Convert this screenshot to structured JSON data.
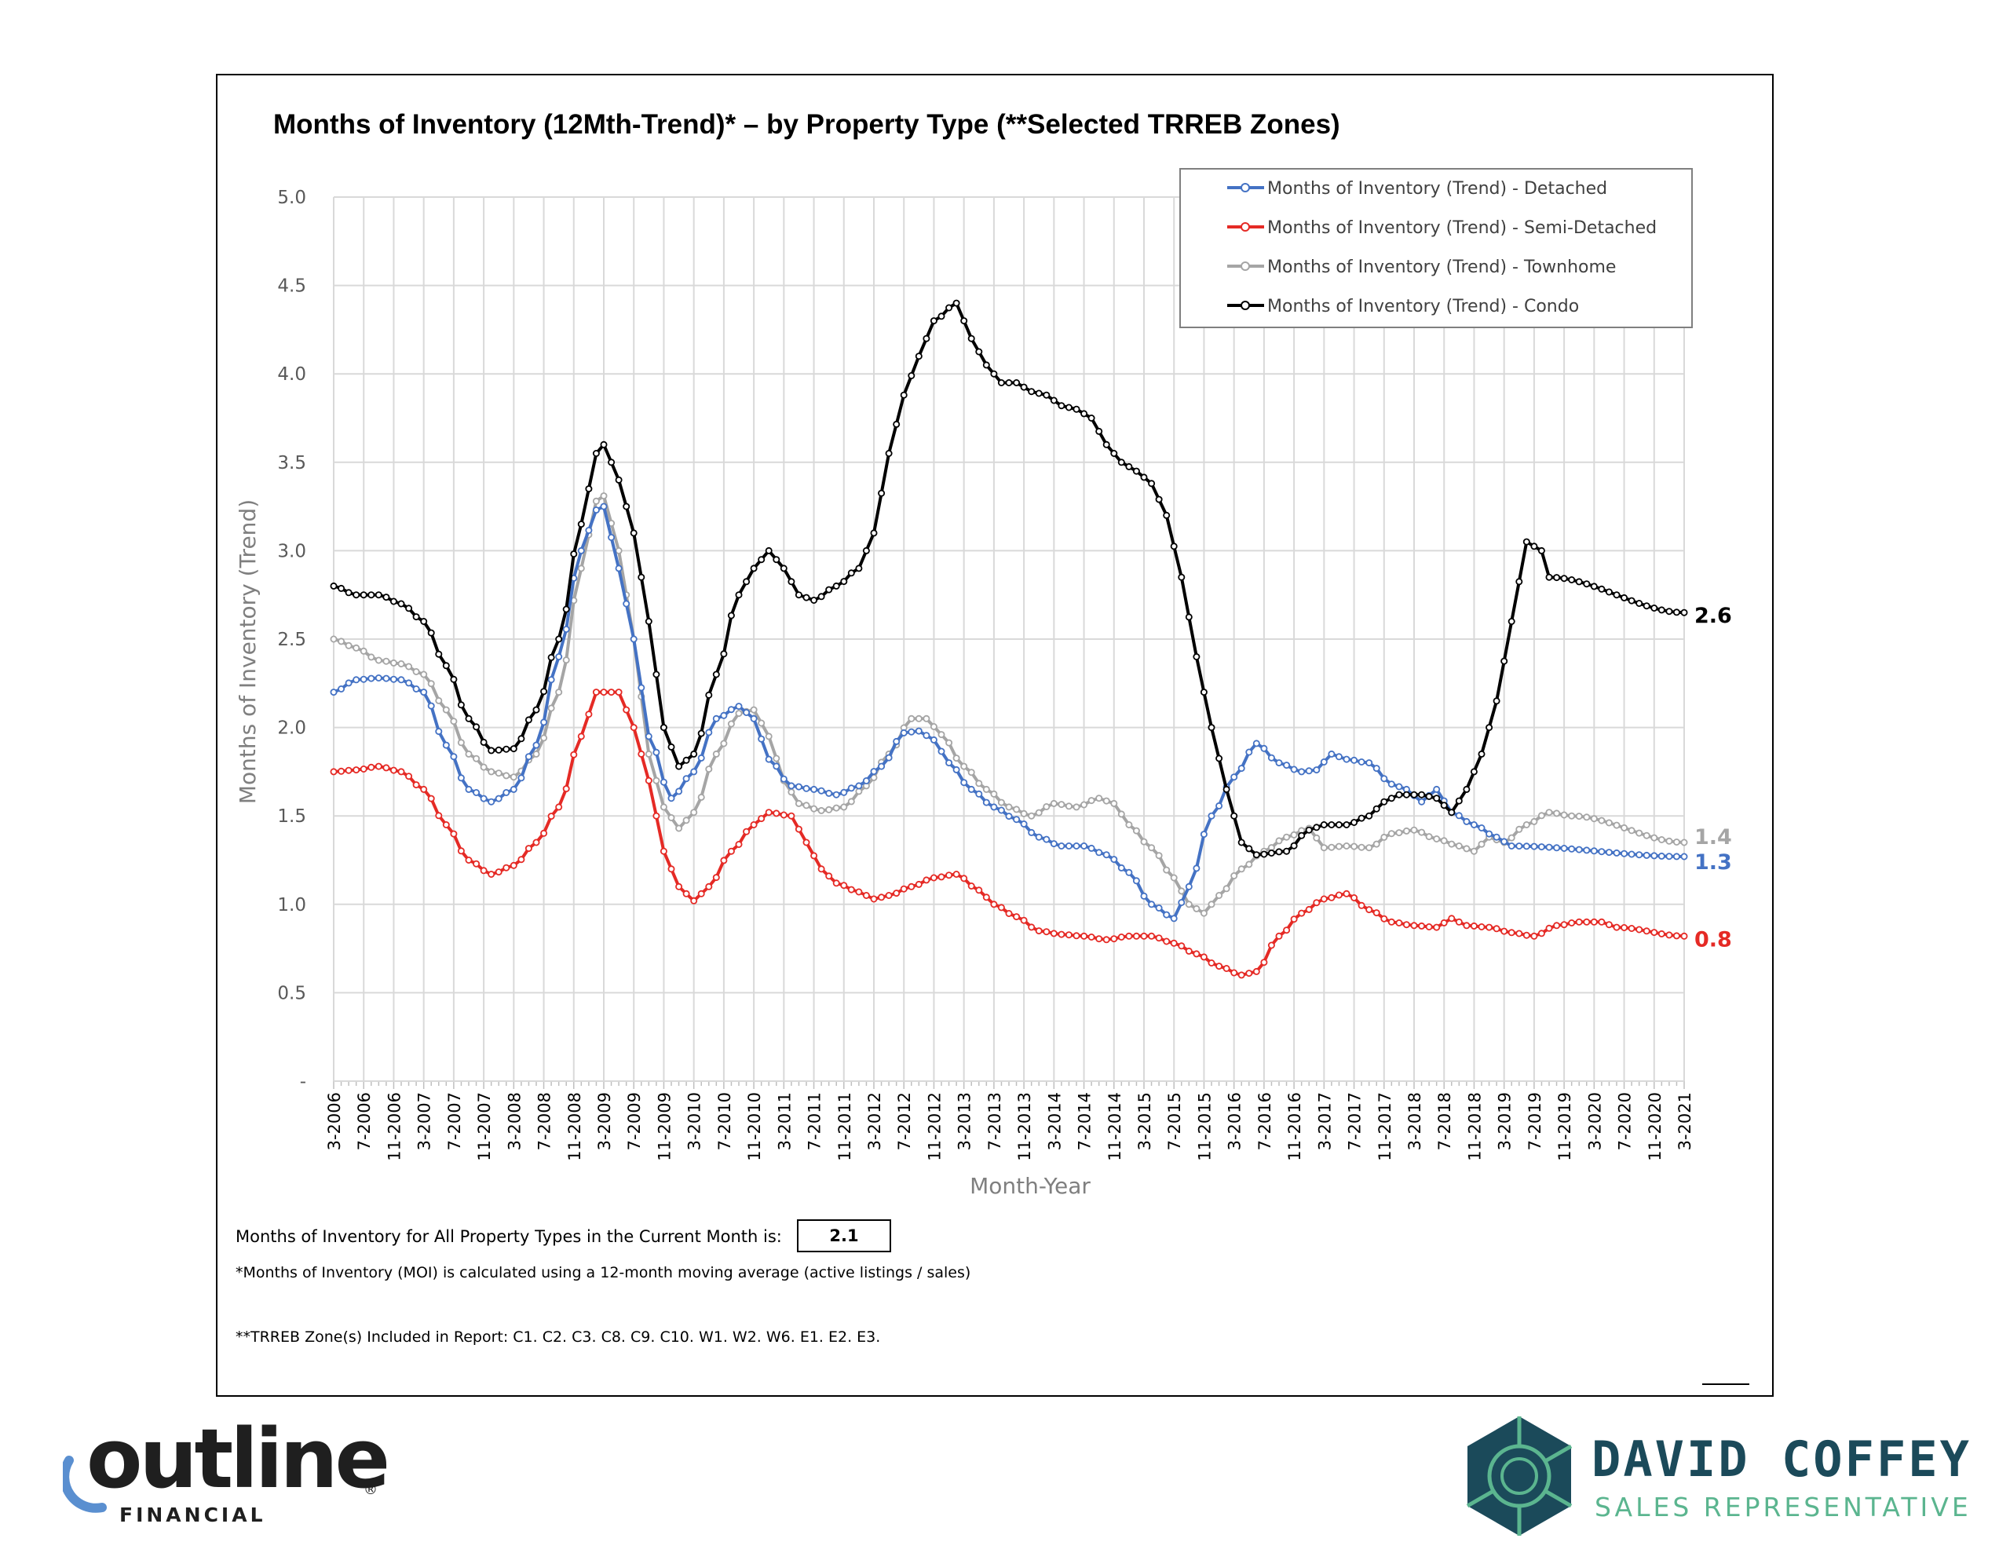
{
  "chart_data": {
    "type": "line",
    "title": "Months of Inventory (12Mth-Trend)* – by Property Type (**Selected TRREB Zones)",
    "xlabel": "Month-Year",
    "ylabel": "Months of Inventory (Trend)",
    "ylim": [
      0,
      5
    ],
    "yticks": [
      "-",
      "0.5",
      "1.0",
      "1.5",
      "2.0",
      "2.5",
      "3.0",
      "3.5",
      "4.0",
      "4.5",
      "5.0"
    ],
    "x_start": "3-2006",
    "x_end": "3-2021",
    "xticks": [
      "3-2006",
      "7-2006",
      "11-2006",
      "3-2007",
      "7-2007",
      "11-2007",
      "3-2008",
      "7-2008",
      "11-2008",
      "3-2009",
      "7-2009",
      "11-2009",
      "3-2010",
      "7-2010",
      "11-2010",
      "3-2011",
      "7-2011",
      "11-2011",
      "3-2012",
      "7-2012",
      "11-2012",
      "3-2013",
      "7-2013",
      "11-2013",
      "3-2014",
      "7-2014",
      "11-2014",
      "3-2015",
      "7-2015",
      "11-2015",
      "3-2016",
      "7-2016",
      "11-2016",
      "3-2017",
      "7-2017",
      "11-2017",
      "3-2018",
      "7-2018",
      "11-2018",
      "3-2019",
      "7-2019",
      "11-2019",
      "3-2020",
      "7-2020",
      "11-2020",
      "3-2021"
    ],
    "grid": true,
    "legend_position": "top-right",
    "series": [
      {
        "name": "Months of Inventory (Trend) - Detached",
        "color": "#4472c4",
        "end_label": "1.3",
        "keypoints": [
          [
            0,
            2.2
          ],
          [
            3,
            2.27
          ],
          [
            6,
            2.28
          ],
          [
            9,
            2.27
          ],
          [
            12,
            2.2
          ],
          [
            15,
            1.9
          ],
          [
            18,
            1.65
          ],
          [
            21,
            1.58
          ],
          [
            24,
            1.65
          ],
          [
            27,
            1.9
          ],
          [
            30,
            2.4
          ],
          [
            33,
            3.0
          ],
          [
            35,
            3.23
          ],
          [
            36,
            3.25
          ],
          [
            38,
            2.9
          ],
          [
            40,
            2.5
          ],
          [
            42,
            1.95
          ],
          [
            45,
            1.6
          ],
          [
            48,
            1.75
          ],
          [
            51,
            2.05
          ],
          [
            54,
            2.12
          ],
          [
            56,
            2.05
          ],
          [
            58,
            1.82
          ],
          [
            61,
            1.67
          ],
          [
            64,
            1.65
          ],
          [
            67,
            1.62
          ],
          [
            70,
            1.67
          ],
          [
            73,
            1.78
          ],
          [
            76,
            1.97
          ],
          [
            78,
            1.98
          ],
          [
            80,
            1.93
          ],
          [
            82,
            1.8
          ],
          [
            85,
            1.65
          ],
          [
            88,
            1.55
          ],
          [
            91,
            1.48
          ],
          [
            94,
            1.38
          ],
          [
            97,
            1.33
          ],
          [
            100,
            1.33
          ],
          [
            103,
            1.28
          ],
          [
            106,
            1.18
          ],
          [
            109,
            1.0
          ],
          [
            112,
            0.92
          ],
          [
            114,
            1.1
          ],
          [
            117,
            1.5
          ],
          [
            120,
            1.72
          ],
          [
            123,
            1.91
          ],
          [
            126,
            1.8
          ],
          [
            129,
            1.75
          ],
          [
            131,
            1.76
          ],
          [
            133,
            1.85
          ],
          [
            135,
            1.82
          ],
          [
            138,
            1.8
          ],
          [
            141,
            1.68
          ],
          [
            143,
            1.65
          ],
          [
            145,
            1.58
          ],
          [
            147,
            1.65
          ],
          [
            149,
            1.52
          ],
          [
            152,
            1.45
          ],
          [
            155,
            1.38
          ],
          [
            157,
            1.33
          ],
          [
            180,
            1.27
          ]
        ]
      },
      {
        "name": "Months of Inventory (Trend) - Semi-Detached",
        "color": "#e52a25",
        "end_label": "0.8",
        "keypoints": [
          [
            0,
            1.75
          ],
          [
            3,
            1.76
          ],
          [
            6,
            1.78
          ],
          [
            9,
            1.75
          ],
          [
            12,
            1.65
          ],
          [
            15,
            1.45
          ],
          [
            18,
            1.25
          ],
          [
            21,
            1.17
          ],
          [
            24,
            1.22
          ],
          [
            27,
            1.35
          ],
          [
            30,
            1.55
          ],
          [
            33,
            1.95
          ],
          [
            35,
            2.2
          ],
          [
            38,
            2.2
          ],
          [
            40,
            2.0
          ],
          [
            42,
            1.7
          ],
          [
            44,
            1.3
          ],
          [
            46,
            1.1
          ],
          [
            48,
            1.02
          ],
          [
            50,
            1.1
          ],
          [
            53,
            1.3
          ],
          [
            56,
            1.45
          ],
          [
            58,
            1.52
          ],
          [
            61,
            1.5
          ],
          [
            63,
            1.35
          ],
          [
            65,
            1.2
          ],
          [
            67,
            1.12
          ],
          [
            70,
            1.07
          ],
          [
            72,
            1.03
          ],
          [
            74,
            1.05
          ],
          [
            77,
            1.1
          ],
          [
            80,
            1.15
          ],
          [
            83,
            1.17
          ],
          [
            86,
            1.08
          ],
          [
            88,
            1.0
          ],
          [
            91,
            0.93
          ],
          [
            94,
            0.85
          ],
          [
            97,
            0.83
          ],
          [
            100,
            0.82
          ],
          [
            103,
            0.8
          ],
          [
            106,
            0.82
          ],
          [
            109,
            0.82
          ],
          [
            112,
            0.78
          ],
          [
            115,
            0.72
          ],
          [
            118,
            0.65
          ],
          [
            121,
            0.6
          ],
          [
            123,
            0.62
          ],
          [
            126,
            0.82
          ],
          [
            129,
            0.95
          ],
          [
            132,
            1.03
          ],
          [
            135,
            1.06
          ],
          [
            138,
            0.97
          ],
          [
            141,
            0.9
          ],
          [
            144,
            0.88
          ],
          [
            147,
            0.87
          ],
          [
            149,
            0.92
          ],
          [
            151,
            0.88
          ],
          [
            154,
            0.87
          ],
          [
            157,
            0.84
          ],
          [
            160,
            0.82
          ],
          [
            163,
            0.88
          ],
          [
            166,
            0.9
          ],
          [
            169,
            0.9
          ],
          [
            171,
            0.87
          ],
          [
            180,
            0.82
          ]
        ]
      },
      {
        "name": "Months of Inventory (Trend) - Townhome",
        "color": "#a5a5a5",
        "end_label": "1.4",
        "keypoints": [
          [
            0,
            2.5
          ],
          [
            3,
            2.45
          ],
          [
            6,
            2.38
          ],
          [
            9,
            2.36
          ],
          [
            12,
            2.3
          ],
          [
            15,
            2.1
          ],
          [
            18,
            1.85
          ],
          [
            21,
            1.75
          ],
          [
            24,
            1.72
          ],
          [
            27,
            1.85
          ],
          [
            30,
            2.2
          ],
          [
            33,
            2.9
          ],
          [
            35,
            3.28
          ],
          [
            36,
            3.31
          ],
          [
            38,
            3.0
          ],
          [
            40,
            2.5
          ],
          [
            42,
            1.85
          ],
          [
            44,
            1.55
          ],
          [
            46,
            1.43
          ],
          [
            48,
            1.52
          ],
          [
            51,
            1.85
          ],
          [
            54,
            2.08
          ],
          [
            56,
            2.1
          ],
          [
            58,
            1.95
          ],
          [
            60,
            1.7
          ],
          [
            62,
            1.57
          ],
          [
            65,
            1.53
          ],
          [
            68,
            1.55
          ],
          [
            71,
            1.67
          ],
          [
            74,
            1.85
          ],
          [
            77,
            2.05
          ],
          [
            79,
            2.05
          ],
          [
            81,
            1.96
          ],
          [
            84,
            1.78
          ],
          [
            87,
            1.65
          ],
          [
            90,
            1.55
          ],
          [
            93,
            1.5
          ],
          [
            96,
            1.57
          ],
          [
            99,
            1.55
          ],
          [
            102,
            1.6
          ],
          [
            104,
            1.57
          ],
          [
            106,
            1.45
          ],
          [
            109,
            1.32
          ],
          [
            112,
            1.15
          ],
          [
            114,
            1.0
          ],
          [
            116,
            0.95
          ],
          [
            118,
            1.05
          ],
          [
            121,
            1.2
          ],
          [
            124,
            1.3
          ],
          [
            127,
            1.38
          ],
          [
            130,
            1.43
          ],
          [
            132,
            1.32
          ],
          [
            135,
            1.33
          ],
          [
            138,
            1.32
          ],
          [
            141,
            1.4
          ],
          [
            144,
            1.42
          ],
          [
            147,
            1.37
          ],
          [
            150,
            1.33
          ],
          [
            152,
            1.3
          ],
          [
            154,
            1.38
          ],
          [
            156,
            1.35
          ],
          [
            159,
            1.45
          ],
          [
            162,
            1.52
          ],
          [
            165,
            1.5
          ],
          [
            180,
            1.35
          ]
        ]
      },
      {
        "name": "Months of Inventory (Trend) - Condo",
        "color": "#000000",
        "end_label": "2.6",
        "keypoints": [
          [
            0,
            2.8
          ],
          [
            3,
            2.75
          ],
          [
            6,
            2.75
          ],
          [
            9,
            2.7
          ],
          [
            12,
            2.6
          ],
          [
            15,
            2.35
          ],
          [
            18,
            2.05
          ],
          [
            21,
            1.87
          ],
          [
            24,
            1.88
          ],
          [
            27,
            2.1
          ],
          [
            30,
            2.5
          ],
          [
            33,
            3.15
          ],
          [
            35,
            3.55
          ],
          [
            36,
            3.6
          ],
          [
            38,
            3.4
          ],
          [
            40,
            3.1
          ],
          [
            42,
            2.6
          ],
          [
            44,
            2.0
          ],
          [
            46,
            1.78
          ],
          [
            48,
            1.85
          ],
          [
            51,
            2.3
          ],
          [
            54,
            2.75
          ],
          [
            56,
            2.9
          ],
          [
            58,
            3.0
          ],
          [
            60,
            2.9
          ],
          [
            62,
            2.75
          ],
          [
            64,
            2.72
          ],
          [
            67,
            2.8
          ],
          [
            70,
            2.9
          ],
          [
            72,
            3.1
          ],
          [
            74,
            3.55
          ],
          [
            76,
            3.88
          ],
          [
            78,
            4.1
          ],
          [
            80,
            4.3
          ],
          [
            83,
            4.4
          ],
          [
            85,
            4.2
          ],
          [
            87,
            4.05
          ],
          [
            89,
            3.95
          ],
          [
            91,
            3.95
          ],
          [
            93,
            3.9
          ],
          [
            95,
            3.88
          ],
          [
            97,
            3.82
          ],
          [
            99,
            3.8
          ],
          [
            101,
            3.75
          ],
          [
            103,
            3.6
          ],
          [
            105,
            3.5
          ],
          [
            107,
            3.45
          ],
          [
            109,
            3.38
          ],
          [
            111,
            3.2
          ],
          [
            113,
            2.85
          ],
          [
            115,
            2.4
          ],
          [
            117,
            2.0
          ],
          [
            119,
            1.65
          ],
          [
            121,
            1.35
          ],
          [
            123,
            1.28
          ],
          [
            127,
            1.3
          ],
          [
            130,
            1.42
          ],
          [
            132,
            1.45
          ],
          [
            135,
            1.45
          ],
          [
            138,
            1.5
          ],
          [
            140,
            1.58
          ],
          [
            142,
            1.62
          ],
          [
            145,
            1.62
          ],
          [
            147,
            1.6
          ],
          [
            149,
            1.52
          ],
          [
            151,
            1.65
          ],
          [
            153,
            1.85
          ],
          [
            155,
            2.15
          ],
          [
            157,
            2.6
          ],
          [
            159,
            3.05
          ],
          [
            161,
            3.0
          ],
          [
            162,
            2.85
          ],
          [
            180,
            2.65
          ]
        ]
      }
    ]
  },
  "footer": {
    "current_month_label": "Months of Inventory for All Property Types in the Current Month is:",
    "current_month_value": "2.1",
    "note1": "*Months of Inventory (MOI) is calculated using a 12-month moving average (active listings / sales)",
    "note2": "**TRREB Zone(s) Included in Report: C1. C2. C3. C8. C9. C10. W1. W2. W6. E1. E2. E3."
  },
  "logos": {
    "outline_word": "outline",
    "outline_sub": "FINANCIAL",
    "outline_reg": "®",
    "agent_name": "DAVID COFFEY",
    "agent_title": "SALES REPRESENTATIVE"
  }
}
